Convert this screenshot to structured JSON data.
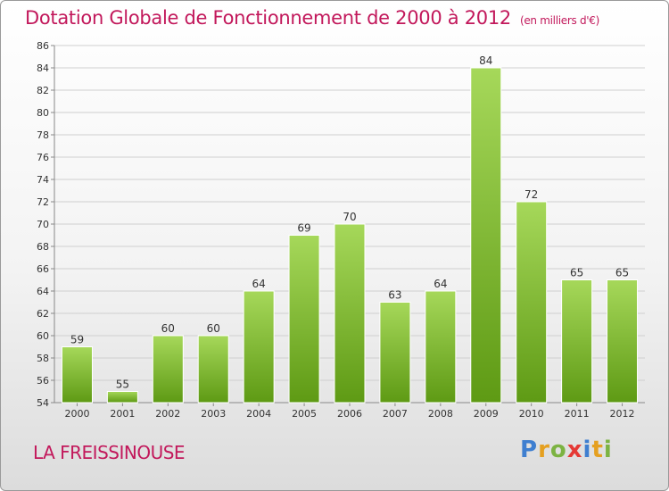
{
  "title": "Dotation Globale de Fonctionnement de 2000 à 2012",
  "subtitle": "(en milliers d'€)",
  "commune": "LA FREISSINOUSE",
  "logo": {
    "letters": [
      "P",
      "r",
      "o",
      "x",
      "i",
      "t",
      "i"
    ],
    "colors": [
      "#3f7fd0",
      "#e5a020",
      "#7cb342",
      "#e53935",
      "#3f7fd0",
      "#e5a020",
      "#7cb342"
    ]
  },
  "colors": {
    "bar_top": "#a6d85a",
    "bar_bottom": "#5e9a14",
    "title": "#c2185b"
  },
  "chart_data": {
    "type": "bar",
    "categories": [
      "2000",
      "2001",
      "2002",
      "2003",
      "2004",
      "2005",
      "2006",
      "2007",
      "2008",
      "2009",
      "2010",
      "2011",
      "2012"
    ],
    "values": [
      59,
      55,
      60,
      60,
      64,
      69,
      70,
      63,
      64,
      84,
      72,
      65,
      65
    ],
    "ylim": [
      54,
      86
    ],
    "yticks": [
      54,
      56,
      58,
      60,
      62,
      64,
      66,
      68,
      70,
      72,
      74,
      76,
      78,
      80,
      82,
      84,
      86
    ],
    "grid": true,
    "xlabel": "",
    "ylabel": ""
  }
}
